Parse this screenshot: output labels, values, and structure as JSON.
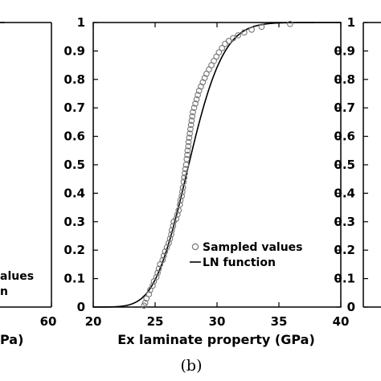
{
  "chart_data": [
    {
      "panel": "left (partial)",
      "type": "line",
      "x_ticks": [
        "60"
      ],
      "y_ticks": [],
      "xlabel_fragment": "Pa)",
      "legend_fragments": [
        "alues",
        "n"
      ],
      "visible_series": [
        {
          "x": [
            60
          ],
          "y": [
            1.0
          ]
        }
      ]
    },
    {
      "panel": "center",
      "type": "scatter",
      "title": "",
      "xlabel": "Ex laminate property (GPa)",
      "ylabel": "",
      "xlim": [
        20,
        40
      ],
      "ylim": [
        0,
        1
      ],
      "x_ticks": [
        "20",
        "25",
        "30",
        "35",
        "40"
      ],
      "y_ticks": [
        "0",
        "0.1",
        "0.2",
        "0.3",
        "0.4",
        "0.5",
        "0.6",
        "0.7",
        "0.8",
        "0.9",
        "1"
      ],
      "legend": {
        "placement": "lower-right",
        "entries": [
          {
            "label": "Sampled values",
            "marker": "open-circle"
          },
          {
            "label": "LN function",
            "marker": "line"
          }
        ]
      },
      "series": [
        {
          "name": "Sampled values",
          "kind": "scatter",
          "points": [
            [
              24.1,
              0.005
            ],
            [
              24.2,
              0.015
            ],
            [
              24.3,
              0.03
            ],
            [
              24.5,
              0.045
            ],
            [
              24.6,
              0.06
            ],
            [
              24.8,
              0.075
            ],
            [
              24.9,
              0.09
            ],
            [
              25.1,
              0.105
            ],
            [
              25.2,
              0.12
            ],
            [
              25.3,
              0.135
            ],
            [
              25.4,
              0.15
            ],
            [
              25.6,
              0.165
            ],
            [
              25.7,
              0.18
            ],
            [
              25.8,
              0.195
            ],
            [
              25.95,
              0.21
            ],
            [
              26.1,
              0.225
            ],
            [
              26.2,
              0.24
            ],
            [
              26.3,
              0.255
            ],
            [
              26.35,
              0.27
            ],
            [
              26.45,
              0.285
            ],
            [
              26.5,
              0.3
            ],
            [
              26.7,
              0.31
            ],
            [
              26.8,
              0.325
            ],
            [
              26.9,
              0.34
            ],
            [
              27.0,
              0.36
            ],
            [
              27.05,
              0.375
            ],
            [
              27.15,
              0.39
            ],
            [
              27.2,
              0.405
            ],
            [
              27.25,
              0.42
            ],
            [
              27.3,
              0.44
            ],
            [
              27.35,
              0.455
            ],
            [
              27.4,
              0.47
            ],
            [
              27.45,
              0.485
            ],
            [
              27.5,
              0.5
            ],
            [
              27.55,
              0.52
            ],
            [
              27.6,
              0.535
            ],
            [
              27.62,
              0.55
            ],
            [
              27.68,
              0.565
            ],
            [
              27.7,
              0.58
            ],
            [
              27.75,
              0.595
            ],
            [
              27.8,
              0.61
            ],
            [
              27.85,
              0.625
            ],
            [
              27.9,
              0.64
            ],
            [
              27.95,
              0.655
            ],
            [
              28.0,
              0.67
            ],
            [
              28.05,
              0.685
            ],
            [
              28.15,
              0.7
            ],
            [
              28.25,
              0.715
            ],
            [
              28.35,
              0.73
            ],
            [
              28.45,
              0.745
            ],
            [
              28.55,
              0.76
            ],
            [
              28.7,
              0.775
            ],
            [
              28.85,
              0.79
            ],
            [
              29.0,
              0.805
            ],
            [
              29.15,
              0.82
            ],
            [
              29.35,
              0.835
            ],
            [
              29.55,
              0.85
            ],
            [
              29.75,
              0.865
            ],
            [
              29.95,
              0.88
            ],
            [
              30.15,
              0.895
            ],
            [
              30.4,
              0.91
            ],
            [
              30.65,
              0.925
            ],
            [
              30.95,
              0.935
            ],
            [
              31.3,
              0.945
            ],
            [
              31.7,
              0.955
            ],
            [
              32.2,
              0.965
            ],
            [
              32.8,
              0.975
            ],
            [
              33.6,
              0.985
            ],
            [
              35.9,
              0.995
            ]
          ]
        },
        {
          "name": "LN function",
          "kind": "line",
          "distribution": "lognormal",
          "mu_gpa": 27.8,
          "sigma_gpa": 2.2
        }
      ]
    },
    {
      "panel": "right (partial)",
      "type": "line",
      "y_tick_fragments": [
        "1",
        "0.9",
        "0.8",
        "0.7",
        "0.6",
        "0.5",
        "0.4",
        "0.3",
        "0.2",
        "0.1",
        "0"
      ]
    }
  ],
  "caption": "(b)"
}
